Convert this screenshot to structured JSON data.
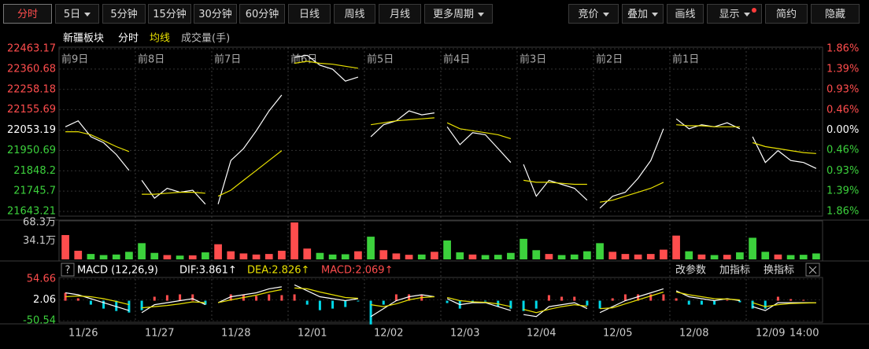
{
  "toolbar": {
    "left": [
      "分时",
      "5日",
      "5分钟",
      "15分钟",
      "30分钟",
      "60分钟",
      "日线",
      "周线",
      "月线",
      "更多周期"
    ],
    "right": [
      "竞价",
      "叠加",
      "画线",
      "显示",
      "简约",
      "隐藏"
    ]
  },
  "chart_data": {
    "type": "line",
    "title": "新疆板块",
    "series": [
      {
        "name": "分时",
        "color": "#ffffff"
      },
      {
        "name": "均线",
        "color": "#e8e000"
      }
    ],
    "volume_title": "成交量(手)",
    "ylim": [
      21643.21,
      22463.17
    ],
    "yticks": [
      22463.17,
      22360.68,
      22258.18,
      22155.69,
      22053.19,
      21950.69,
      21848.2,
      21745.7,
      21643.21
    ],
    "y2lim": [
      -1.86,
      1.86
    ],
    "y2ticks": [
      {
        "value": 1.86,
        "label": "1.86%"
      },
      {
        "value": 1.39,
        "label": "1.39%"
      },
      {
        "value": 0.93,
        "label": "0.93%"
      },
      {
        "value": 0.46,
        "label": "0.46%"
      },
      {
        "value": 0,
        "label": "0.00%"
      },
      {
        "value": -0.46,
        "label": "0.46%"
      },
      {
        "value": -0.93,
        "label": "0.93%"
      },
      {
        "value": -1.39,
        "label": "1.39%"
      },
      {
        "value": -1.86,
        "label": "1.86%"
      }
    ],
    "grid": true,
    "days": [
      {
        "label": "前9日",
        "date": "11/26",
        "price": [
          22070,
          22100,
          22020,
          21990,
          21930,
          21850
        ],
        "avg": [
          22045,
          22045,
          22030,
          22000,
          21970,
          21945
        ],
        "volume": [
          450000,
          160000,
          100000,
          80000,
          90000,
          140000
        ],
        "dif": [
          20,
          15,
          5,
          -5,
          -15,
          -25
        ],
        "dea": [
          10,
          12,
          10,
          5,
          -2,
          -10
        ],
        "macd": [
          20,
          6,
          -10,
          -20,
          -26,
          -30
        ]
      },
      {
        "label": "前8日",
        "date": "11/27",
        "price": [
          21800,
          21710,
          21760,
          21740,
          21750,
          21680
        ],
        "avg": [
          21730,
          21730,
          21735,
          21740,
          21740,
          21735
        ],
        "volume": [
          300000,
          120000,
          80000,
          70000,
          75000,
          130000
        ],
        "dif": [
          -30,
          -10,
          -5,
          0,
          5,
          -10
        ],
        "dea": [
          -18,
          -15,
          -12,
          -8,
          -3,
          -5
        ],
        "macd": [
          -24,
          10,
          14,
          16,
          16,
          -10
        ]
      },
      {
        "label": "前7日",
        "date": "11/28",
        "price": [
          21680,
          21900,
          21960,
          22050,
          22150,
          22230
        ],
        "avg": [
          21720,
          21750,
          21800,
          21850,
          21900,
          21950
        ],
        "volume": [
          280000,
          150000,
          110000,
          90000,
          100000,
          160000
        ],
        "dif": [
          -5,
          10,
          15,
          20,
          30,
          35
        ],
        "dea": [
          -5,
          2,
          8,
          14,
          22,
          28
        ],
        "macd": [
          0,
          16,
          14,
          12,
          16,
          14
        ]
      },
      {
        "label": "前6日",
        "date": "12/01",
        "price": [
          22420,
          22430,
          22380,
          22360,
          22300,
          22320
        ],
        "avg": [
          22390,
          22400,
          22390,
          22385,
          22375,
          22365
        ],
        "volume": [
          683000,
          200000,
          120000,
          90000,
          95000,
          150000
        ],
        "dif": [
          40,
          25,
          10,
          5,
          0,
          5
        ],
        "dea": [
          32,
          30,
          22,
          15,
          8,
          6
        ],
        "macd": [
          16,
          -10,
          -24,
          -20,
          -16,
          -2
        ]
      },
      {
        "label": "前5日",
        "date": "12/02",
        "price": [
          22020,
          22080,
          22100,
          22150,
          22130,
          22140
        ],
        "avg": [
          22080,
          22090,
          22100,
          22105,
          22110,
          22115
        ],
        "volume": [
          420000,
          170000,
          110000,
          85000,
          90000,
          140000
        ],
        "dif": [
          -40,
          -20,
          0,
          10,
          15,
          10
        ],
        "dea": [
          -10,
          -15,
          -8,
          2,
          8,
          10
        ],
        "macd": [
          -60,
          -10,
          16,
          16,
          14,
          0
        ]
      },
      {
        "label": "前4日",
        "date": "12/03",
        "price": [
          22070,
          21980,
          22040,
          22030,
          21960,
          21890
        ],
        "avg": [
          22090,
          22060,
          22050,
          22040,
          22030,
          22010
        ],
        "volume": [
          350000,
          130000,
          90000,
          80000,
          85000,
          120000
        ],
        "dif": [
          5,
          -10,
          -5,
          -5,
          -15,
          -25
        ],
        "dea": [
          8,
          0,
          -3,
          -4,
          -8,
          -15
        ],
        "macd": [
          -6,
          -20,
          -4,
          -2,
          -14,
          -20
        ]
      },
      {
        "label": "前3日",
        "date": "12/04",
        "price": [
          21880,
          21720,
          21800,
          21780,
          21760,
          21700
        ],
        "avg": [
          21800,
          21790,
          21790,
          21785,
          21780,
          21780
        ],
        "volume": [
          380000,
          170000,
          100000,
          80000,
          90000,
          150000
        ],
        "dif": [
          -35,
          -40,
          -15,
          -10,
          -5,
          -20
        ],
        "dea": [
          -22,
          -30,
          -22,
          -15,
          -10,
          -14
        ],
        "macd": [
          -26,
          -20,
          14,
          10,
          10,
          -12
        ]
      },
      {
        "label": "前2日",
        "date": "12/05",
        "price": [
          21660,
          21720,
          21740,
          21810,
          21900,
          22060
        ],
        "avg": [
          21690,
          21700,
          21720,
          21740,
          21760,
          21790
        ],
        "volume": [
          300000,
          140000,
          100000,
          90000,
          100000,
          180000
        ],
        "dif": [
          -30,
          -15,
          0,
          10,
          20,
          30
        ],
        "dea": [
          -20,
          -18,
          -8,
          2,
          12,
          22
        ],
        "macd": [
          -20,
          6,
          16,
          16,
          16,
          16
        ]
      },
      {
        "label": "前1日",
        "date": "12/08",
        "price": [
          22110,
          22060,
          22080,
          22070,
          22090,
          22060
        ],
        "avg": [
          22080,
          22075,
          22075,
          22070,
          22070,
          22070
        ],
        "volume": [
          440000,
          150000,
          90000,
          80000,
          85000,
          130000
        ],
        "dif": [
          25,
          10,
          5,
          0,
          5,
          0
        ],
        "dea": [
          22,
          15,
          10,
          5,
          4,
          2
        ],
        "macd": [
          6,
          -10,
          -10,
          -10,
          2,
          -4
        ]
      },
      {
        "label": null,
        "date": "12/09",
        "price": [
          22020,
          21890,
          21950,
          21900,
          21890,
          21860
        ],
        "avg": [
          21990,
          21970,
          21960,
          21950,
          21940,
          21935
        ],
        "volume": [
          400000,
          140000,
          90000,
          80000,
          85000,
          110000
        ],
        "dif": [
          -15,
          -25,
          -5,
          -5,
          -5,
          -5
        ],
        "dea": [
          -5,
          -15,
          -10,
          -7,
          -6,
          -5
        ],
        "macd": [
          -20,
          -20,
          10,
          4,
          2,
          0
        ]
      }
    ],
    "time_label": "14:00",
    "volume": {
      "type": "bar",
      "ylim": [
        0,
        683000
      ],
      "yticks": [
        {
          "value": 683000,
          "label": "68.3万"
        },
        {
          "value": 341000,
          "label": "34.1万"
        }
      ],
      "up_color": "#ff4d4d",
      "down_color": "#3cd13c"
    },
    "macd": {
      "type": "bar",
      "title": "MACD (12,26,9)",
      "help": "?",
      "dif_label": "DIF:3.861↑",
      "dea_label": "DEA:2.826↑",
      "macd_label": "MACD:2.069↑",
      "dif_color": "#ffffff",
      "dea_color": "#e8e000",
      "up_color": "#ff4d4d",
      "down_color": "#00d8e8",
      "ylim": [
        -50.54,
        54.66
      ],
      "yticks": [
        54.66,
        2.06,
        -50.54
      ],
      "buttons": [
        "改参数",
        "加指标",
        "换指标"
      ]
    }
  }
}
